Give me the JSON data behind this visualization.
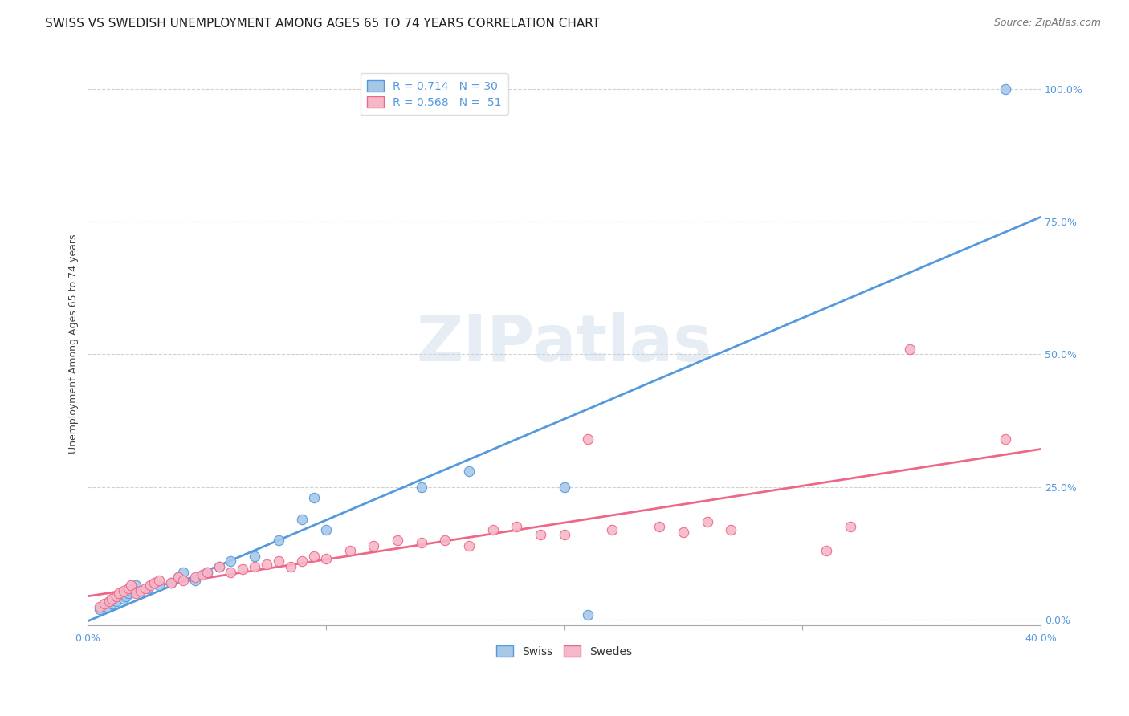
{
  "title": "SWISS VS SWEDISH UNEMPLOYMENT AMONG AGES 65 TO 74 YEARS CORRELATION CHART",
  "source": "Source: ZipAtlas.com",
  "ylabel": "Unemployment Among Ages 65 to 74 years",
  "xlim": [
    0.0,
    0.4
  ],
  "ylim": [
    -0.01,
    1.05
  ],
  "ytick_labels": [
    "0.0%",
    "25.0%",
    "50.0%",
    "75.0%",
    "100.0%"
  ],
  "ytick_values": [
    0.0,
    0.25,
    0.5,
    0.75,
    1.0
  ],
  "xtick_values": [
    0.0,
    0.1,
    0.2,
    0.3,
    0.4
  ],
  "xtick_labels": [
    "0.0%",
    "",
    "",
    "",
    "40.0%"
  ],
  "legend_swiss": "R = 0.714   N = 30",
  "legend_swedes": "R = 0.568   N =  51",
  "swiss_color": "#a8c8e8",
  "swedes_color": "#f5b8c8",
  "swiss_line_color": "#5599dd",
  "swedes_line_color": "#ee6688",
  "background_color": "#ffffff",
  "watermark": "ZIPatlas",
  "swiss_x": [
    0.005,
    0.008,
    0.01,
    0.012,
    0.015,
    0.016,
    0.017,
    0.018,
    0.019,
    0.02,
    0.022,
    0.025,
    0.03,
    0.035,
    0.038,
    0.04,
    0.045,
    0.05,
    0.055,
    0.06,
    0.07,
    0.08,
    0.09,
    0.095,
    0.1,
    0.14,
    0.16,
    0.2,
    0.21,
    0.385
  ],
  "swiss_y": [
    0.02,
    0.025,
    0.03,
    0.035,
    0.04,
    0.045,
    0.05,
    0.055,
    0.06,
    0.065,
    0.055,
    0.06,
    0.065,
    0.07,
    0.08,
    0.09,
    0.075,
    0.09,
    0.1,
    0.11,
    0.12,
    0.15,
    0.19,
    0.23,
    0.17,
    0.25,
    0.28,
    0.25,
    0.01,
    1.0
  ],
  "swedes_x": [
    0.005,
    0.007,
    0.009,
    0.01,
    0.012,
    0.013,
    0.015,
    0.017,
    0.018,
    0.02,
    0.022,
    0.024,
    0.026,
    0.028,
    0.03,
    0.035,
    0.038,
    0.04,
    0.045,
    0.048,
    0.05,
    0.055,
    0.06,
    0.065,
    0.07,
    0.075,
    0.08,
    0.085,
    0.09,
    0.095,
    0.1,
    0.11,
    0.12,
    0.13,
    0.14,
    0.15,
    0.16,
    0.17,
    0.18,
    0.19,
    0.2,
    0.21,
    0.22,
    0.24,
    0.25,
    0.26,
    0.27,
    0.31,
    0.32,
    0.345,
    0.385
  ],
  "swedes_y": [
    0.025,
    0.03,
    0.035,
    0.04,
    0.045,
    0.05,
    0.055,
    0.06,
    0.065,
    0.05,
    0.055,
    0.06,
    0.065,
    0.07,
    0.075,
    0.07,
    0.08,
    0.075,
    0.08,
    0.085,
    0.09,
    0.1,
    0.09,
    0.095,
    0.1,
    0.105,
    0.11,
    0.1,
    0.11,
    0.12,
    0.115,
    0.13,
    0.14,
    0.15,
    0.145,
    0.15,
    0.14,
    0.17,
    0.175,
    0.16,
    0.16,
    0.34,
    0.17,
    0.175,
    0.165,
    0.185,
    0.17,
    0.13,
    0.175,
    0.51,
    0.34
  ],
  "title_fontsize": 11,
  "source_fontsize": 9,
  "axis_label_fontsize": 9,
  "tick_fontsize": 9,
  "legend_fontsize": 10,
  "marker_size": 80,
  "line_width": 2.0
}
